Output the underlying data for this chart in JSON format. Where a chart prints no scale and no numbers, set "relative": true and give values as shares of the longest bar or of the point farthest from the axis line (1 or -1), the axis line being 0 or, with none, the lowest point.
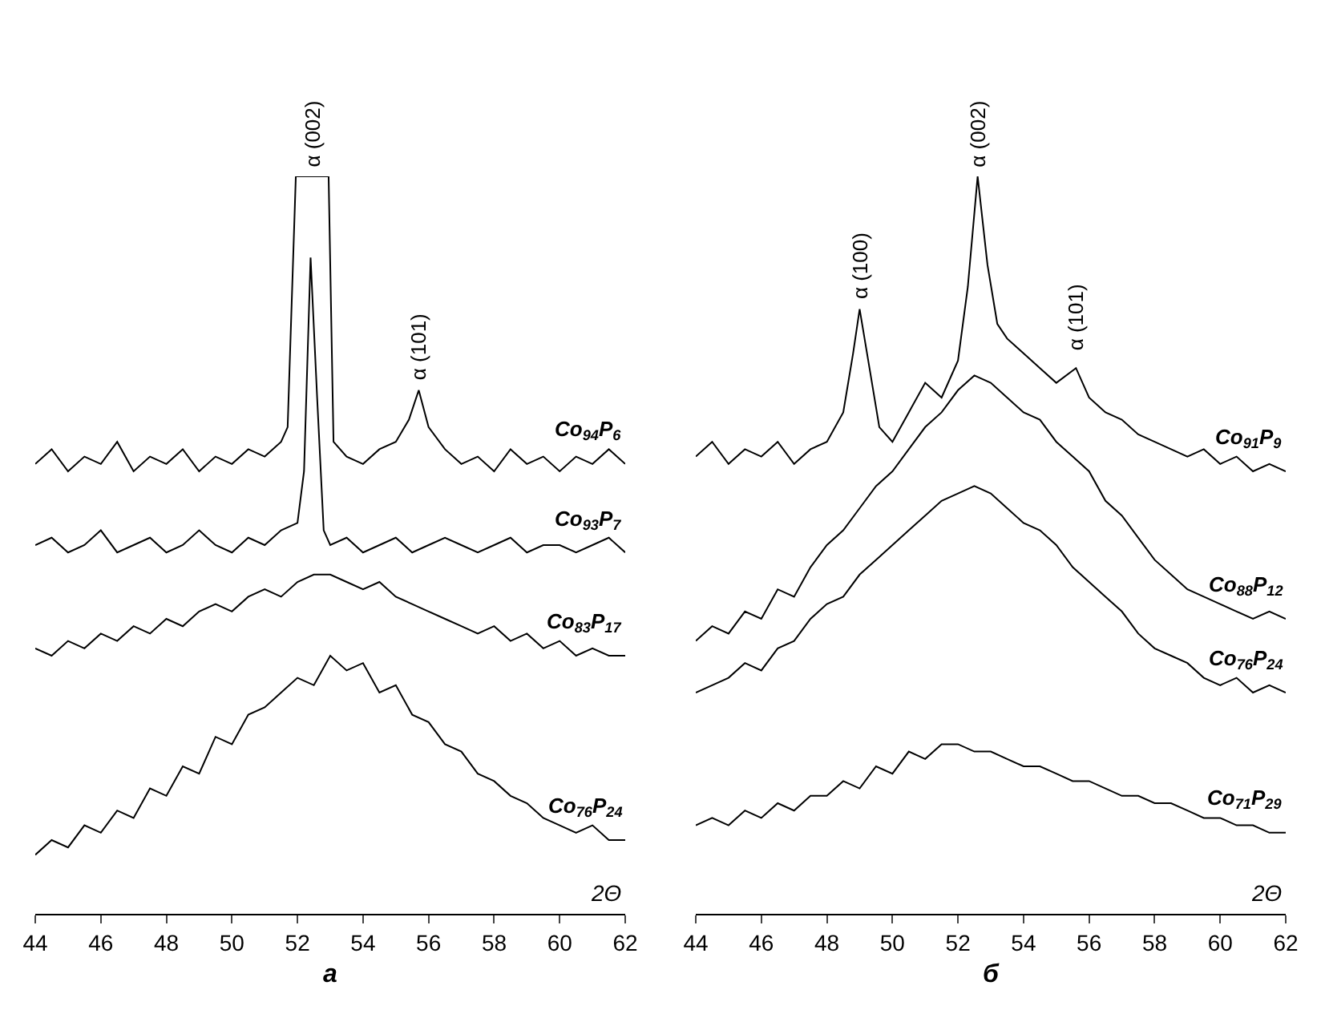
{
  "chart_data": [
    {
      "type": "line",
      "title": "а",
      "xlabel": "2Θ",
      "relative": true,
      "xlim": [
        44,
        62
      ],
      "xticks": [
        44,
        46,
        48,
        50,
        52,
        54,
        56,
        58,
        60,
        62
      ],
      "tick_labels": "x",
      "grid": false,
      "legend": false,
      "marker": "none",
      "line_style": "solid",
      "annotations": [
        {
          "text": "α (002)",
          "x": 52.45,
          "y": 1.0
        },
        {
          "text": "α (101)",
          "x": 55.7,
          "y": 0.71
        }
      ],
      "series": [
        {
          "name": "Co$_{94}$P$_{6}$",
          "color": "#000000",
          "x": [
            44,
            44.5,
            45,
            45.5,
            46,
            46.5,
            47,
            47.5,
            48,
            48.5,
            49,
            49.5,
            50,
            50.5,
            51,
            51.5,
            51.7,
            51.95,
            52.95,
            53.1,
            53.5,
            54,
            54.5,
            55,
            55.4,
            55.7,
            56,
            56.5,
            57,
            57.5,
            58,
            58.5,
            59,
            59.5,
            60,
            60.5,
            61,
            61.5,
            62
          ],
          "values": [
            0.61,
            0.63,
            0.6,
            0.62,
            0.61,
            0.64,
            0.6,
            0.62,
            0.61,
            0.63,
            0.6,
            0.62,
            0.61,
            0.63,
            0.62,
            0.64,
            0.66,
            1.0,
            1.0,
            0.64,
            0.62,
            0.61,
            0.63,
            0.64,
            0.67,
            0.71,
            0.66,
            0.63,
            0.61,
            0.62,
            0.6,
            0.63,
            0.61,
            0.62,
            0.6,
            0.62,
            0.61,
            0.63,
            0.61
          ]
        },
        {
          "name": "Co$_{93}$P$_{7}$",
          "color": "#000000",
          "x": [
            44,
            44.5,
            45,
            45.5,
            46,
            46.5,
            47,
            47.5,
            48,
            48.5,
            49,
            49.5,
            50,
            50.5,
            51,
            51.5,
            52,
            52.2,
            52.4,
            52.6,
            52.8,
            53,
            53.5,
            54,
            54.5,
            55,
            55.5,
            56,
            56.5,
            57,
            57.5,
            58,
            58.5,
            59,
            59.5,
            60,
            60.5,
            61,
            61.5,
            62
          ],
          "values": [
            0.5,
            0.51,
            0.49,
            0.5,
            0.52,
            0.49,
            0.5,
            0.51,
            0.49,
            0.5,
            0.52,
            0.5,
            0.49,
            0.51,
            0.5,
            0.52,
            0.53,
            0.6,
            0.89,
            0.7,
            0.52,
            0.5,
            0.51,
            0.49,
            0.5,
            0.51,
            0.49,
            0.5,
            0.51,
            0.5,
            0.49,
            0.5,
            0.51,
            0.49,
            0.5,
            0.5,
            0.49,
            0.5,
            0.51,
            0.49
          ]
        },
        {
          "name": "Co$_{83}$P$_{17}$",
          "color": "#000000",
          "x": [
            44,
            44.5,
            45,
            45.5,
            46,
            46.5,
            47,
            47.5,
            48,
            48.5,
            49,
            49.5,
            50,
            50.5,
            51,
            51.5,
            52,
            52.5,
            53,
            53.5,
            54,
            54.5,
            55,
            55.5,
            56,
            56.5,
            57,
            57.5,
            58,
            58.5,
            59,
            59.5,
            60,
            60.5,
            61,
            61.5,
            62
          ],
          "values": [
            0.36,
            0.35,
            0.37,
            0.36,
            0.38,
            0.37,
            0.39,
            0.38,
            0.4,
            0.39,
            0.41,
            0.42,
            0.41,
            0.43,
            0.44,
            0.43,
            0.45,
            0.46,
            0.46,
            0.45,
            0.44,
            0.45,
            0.43,
            0.42,
            0.41,
            0.4,
            0.39,
            0.38,
            0.39,
            0.37,
            0.38,
            0.36,
            0.37,
            0.35,
            0.36,
            0.35,
            0.35
          ]
        },
        {
          "name": "Co$_{76}$P$_{24}$",
          "color": "#000000",
          "x": [
            44,
            44.5,
            45,
            45.5,
            46,
            46.5,
            47,
            47.5,
            48,
            48.5,
            49,
            49.5,
            50,
            50.5,
            51,
            51.5,
            52,
            52.5,
            53,
            53.5,
            54,
            54.5,
            55,
            55.5,
            56,
            56.5,
            57,
            57.5,
            58,
            58.5,
            59,
            59.5,
            60,
            60.5,
            61,
            61.5,
            62
          ],
          "values": [
            0.08,
            0.1,
            0.09,
            0.12,
            0.11,
            0.14,
            0.13,
            0.17,
            0.16,
            0.2,
            0.19,
            0.24,
            0.23,
            0.27,
            0.28,
            0.3,
            0.32,
            0.31,
            0.35,
            0.33,
            0.34,
            0.3,
            0.31,
            0.27,
            0.26,
            0.23,
            0.22,
            0.19,
            0.18,
            0.16,
            0.15,
            0.13,
            0.12,
            0.11,
            0.12,
            0.1,
            0.1
          ]
        }
      ]
    },
    {
      "type": "line",
      "title": "б",
      "xlabel": "2Θ",
      "relative": true,
      "xlim": [
        44,
        62
      ],
      "xticks": [
        44,
        46,
        48,
        50,
        52,
        54,
        56,
        58,
        60,
        62
      ],
      "tick_labels": "x",
      "grid": false,
      "legend": false,
      "marker": "none",
      "line_style": "solid",
      "annotations": [
        {
          "text": "α (100)",
          "x": 49,
          "y": 0.82
        },
        {
          "text": "α (002)",
          "x": 52.6,
          "y": 1.0
        },
        {
          "text": "α (101)",
          "x": 55.6,
          "y": 0.75
        }
      ],
      "series": [
        {
          "name": "Co$_{91}$P$_{9}$",
          "color": "#000000",
          "x": [
            44,
            44.5,
            45,
            45.5,
            46,
            46.5,
            47,
            47.5,
            48,
            48.5,
            48.8,
            49,
            49.3,
            49.6,
            50,
            50.5,
            51,
            51.5,
            52,
            52.3,
            52.6,
            52.9,
            53.2,
            53.5,
            54,
            54.5,
            55,
            55.6,
            56,
            56.5,
            57,
            57.5,
            58,
            58.5,
            59,
            59.5,
            60,
            60.5,
            61,
            61.5,
            62
          ],
          "values": [
            0.62,
            0.64,
            0.61,
            0.63,
            0.62,
            0.64,
            0.61,
            0.63,
            0.64,
            0.68,
            0.76,
            0.82,
            0.74,
            0.66,
            0.64,
            0.68,
            0.72,
            0.7,
            0.75,
            0.85,
            1.0,
            0.88,
            0.8,
            0.78,
            0.76,
            0.74,
            0.72,
            0.74,
            0.7,
            0.68,
            0.67,
            0.65,
            0.64,
            0.63,
            0.62,
            0.63,
            0.61,
            0.62,
            0.6,
            0.61,
            0.6
          ]
        },
        {
          "name": "Co$_{88}$P$_{12}$",
          "color": "#000000",
          "x": [
            44,
            44.5,
            45,
            45.5,
            46,
            46.5,
            47,
            47.5,
            48,
            48.5,
            49,
            49.5,
            50,
            50.5,
            51,
            51.5,
            52,
            52.5,
            53,
            53.5,
            54,
            54.5,
            55,
            55.5,
            56,
            56.5,
            57,
            57.5,
            58,
            58.5,
            59,
            59.5,
            60,
            60.5,
            61,
            61.5,
            62
          ],
          "values": [
            0.37,
            0.39,
            0.38,
            0.41,
            0.4,
            0.44,
            0.43,
            0.47,
            0.5,
            0.52,
            0.55,
            0.58,
            0.6,
            0.63,
            0.66,
            0.68,
            0.71,
            0.73,
            0.72,
            0.7,
            0.68,
            0.67,
            0.64,
            0.62,
            0.6,
            0.56,
            0.54,
            0.51,
            0.48,
            0.46,
            0.44,
            0.43,
            0.42,
            0.41,
            0.4,
            0.41,
            0.4
          ]
        },
        {
          "name": "Co$_{76}$P$_{24}$",
          "color": "#000000",
          "x": [
            44,
            44.5,
            45,
            45.5,
            46,
            46.5,
            47,
            47.5,
            48,
            48.5,
            49,
            49.5,
            50,
            50.5,
            51,
            51.5,
            52,
            52.5,
            53,
            53.5,
            54,
            54.5,
            55,
            55.5,
            56,
            56.5,
            57,
            57.5,
            58,
            58.5,
            59,
            59.5,
            60,
            60.5,
            61,
            61.5,
            62
          ],
          "values": [
            0.3,
            0.31,
            0.32,
            0.34,
            0.33,
            0.36,
            0.37,
            0.4,
            0.42,
            0.43,
            0.46,
            0.48,
            0.5,
            0.52,
            0.54,
            0.56,
            0.57,
            0.58,
            0.57,
            0.55,
            0.53,
            0.52,
            0.5,
            0.47,
            0.45,
            0.43,
            0.41,
            0.38,
            0.36,
            0.35,
            0.34,
            0.32,
            0.31,
            0.32,
            0.3,
            0.31,
            0.3
          ]
        },
        {
          "name": "Co$_{71}$P$_{29}$",
          "color": "#000000",
          "x": [
            44,
            44.5,
            45,
            45.5,
            46,
            46.5,
            47,
            47.5,
            48,
            48.5,
            49,
            49.5,
            50,
            50.5,
            51,
            51.5,
            52,
            52.5,
            53,
            53.5,
            54,
            54.5,
            55,
            55.5,
            56,
            56.5,
            57,
            57.5,
            58,
            58.5,
            59,
            59.5,
            60,
            60.5,
            61,
            61.5,
            62
          ],
          "values": [
            0.12,
            0.13,
            0.12,
            0.14,
            0.13,
            0.15,
            0.14,
            0.16,
            0.16,
            0.18,
            0.17,
            0.2,
            0.19,
            0.22,
            0.21,
            0.23,
            0.23,
            0.22,
            0.22,
            0.21,
            0.2,
            0.2,
            0.19,
            0.18,
            0.18,
            0.17,
            0.16,
            0.16,
            0.15,
            0.15,
            0.14,
            0.13,
            0.13,
            0.12,
            0.12,
            0.11,
            0.11
          ]
        }
      ]
    }
  ]
}
